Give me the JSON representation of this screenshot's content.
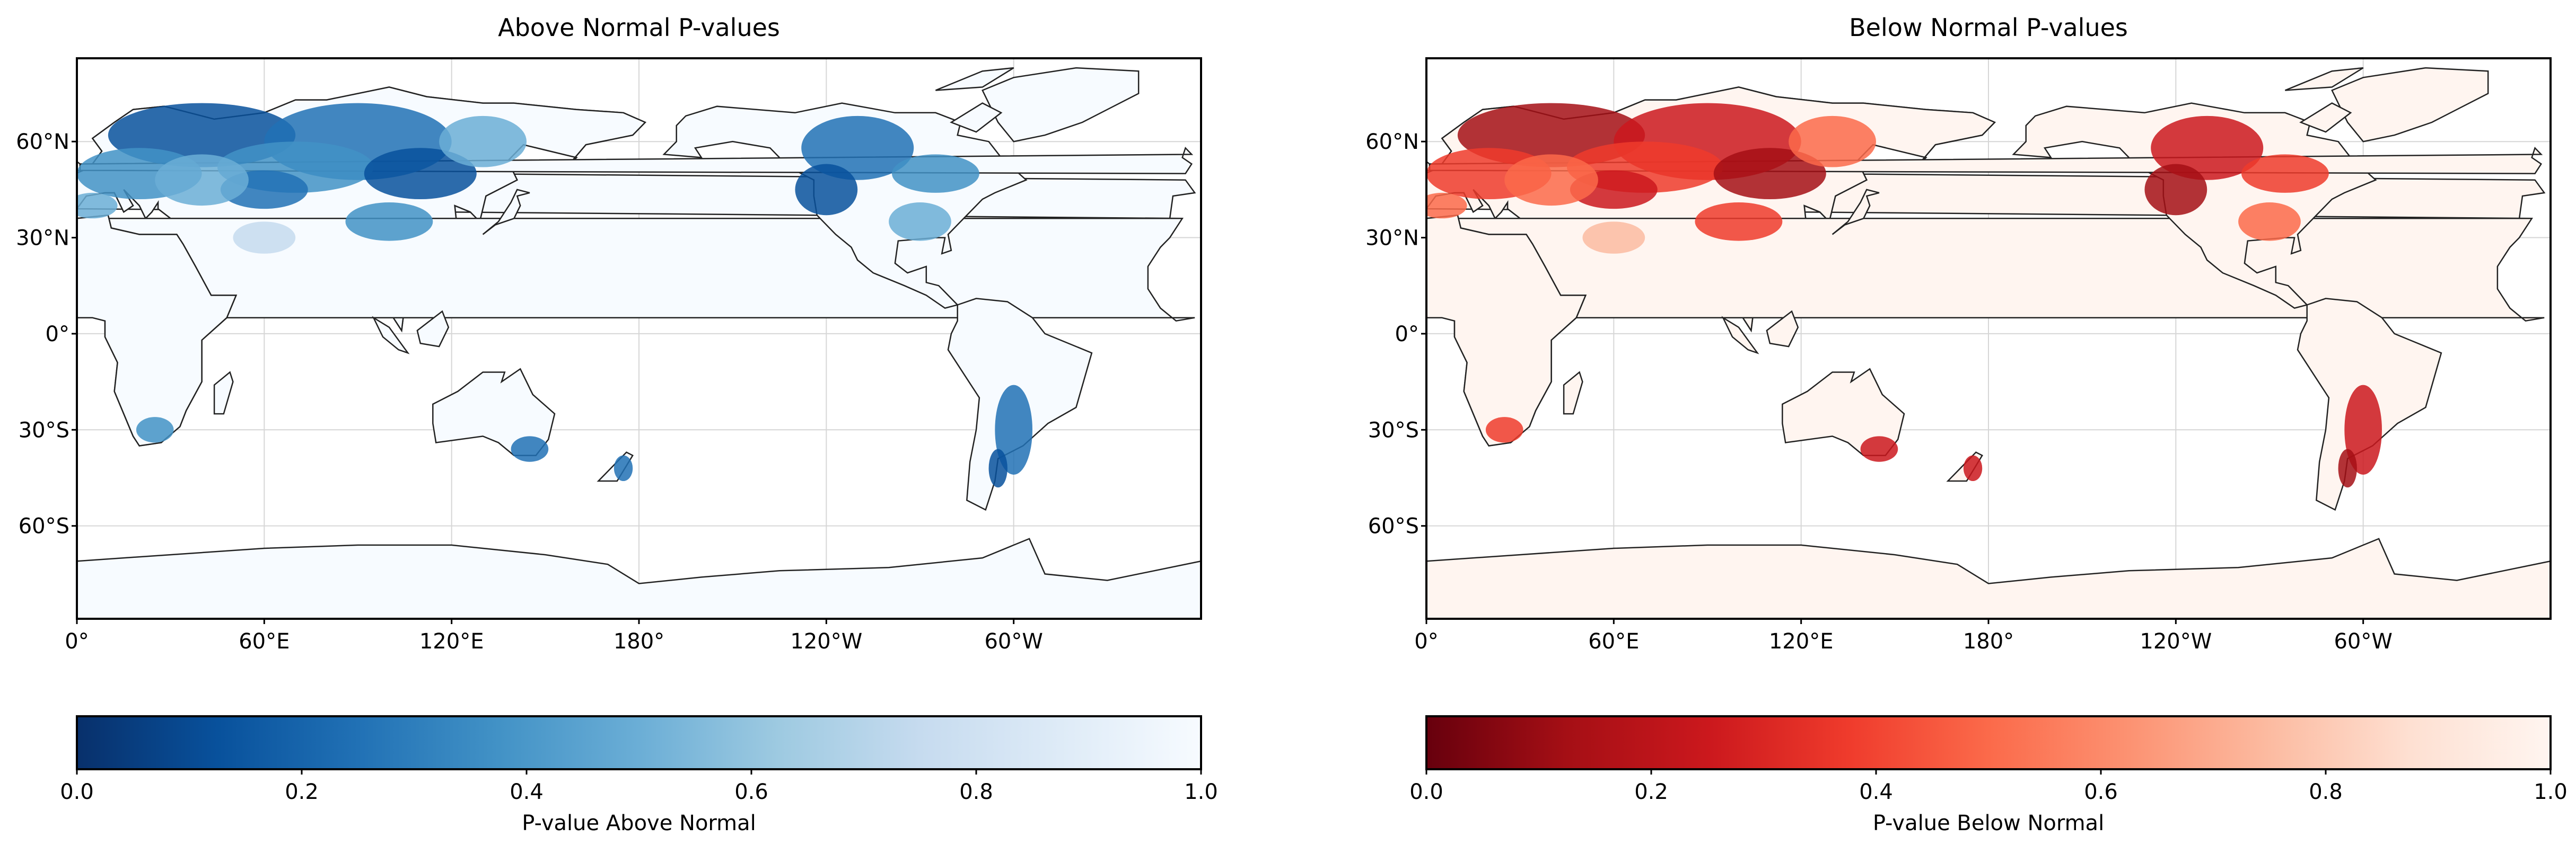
{
  "panels": [
    {
      "id": "above",
      "title": "Above Normal P-values",
      "colorbar_label": "P-value Above Normal",
      "colormap": [
        "#08306b",
        "#08519c",
        "#2171b5",
        "#4292c6",
        "#6baed6",
        "#9ecae1",
        "#c6dbef",
        "#deebf7",
        "#f7fbff"
      ],
      "land_base": "#f7fbff",
      "hot_spots": [
        "#08519c",
        "#2171b5",
        "#4292c6",
        "#6baed6",
        "#c6dbef"
      ]
    },
    {
      "id": "below",
      "title": "Below Normal P-values",
      "colorbar_label": "P-value Below Normal",
      "colormap": [
        "#67000d",
        "#a50f15",
        "#cb181d",
        "#ef3b2c",
        "#fb6a4a",
        "#fc9272",
        "#fcbba1",
        "#fee0d2",
        "#fff5f0"
      ],
      "land_base": "#fff5f0",
      "hot_spots": [
        "#a50f15",
        "#cb181d",
        "#ef3b2c",
        "#fb6a4a",
        "#fcbba1"
      ]
    }
  ],
  "lat_ticks": [
    {
      "lat": 60,
      "label": "60°N"
    },
    {
      "lat": 30,
      "label": "30°N"
    },
    {
      "lat": 0,
      "label": "0°"
    },
    {
      "lat": -30,
      "label": "30°S"
    },
    {
      "lat": -60,
      "label": "60°S"
    }
  ],
  "lon_ticks": [
    {
      "lon": 0,
      "label": "0°"
    },
    {
      "lon": 60,
      "label": "60°E"
    },
    {
      "lon": 120,
      "label": "120°E"
    },
    {
      "lon": 180,
      "label": "180°"
    },
    {
      "lon": 240,
      "label": "120°W"
    },
    {
      "lon": 300,
      "label": "60°W"
    }
  ],
  "colorbar_ticks": [
    "0.0",
    "0.2",
    "0.4",
    "0.6",
    "0.8",
    "1.0"
  ]
}
